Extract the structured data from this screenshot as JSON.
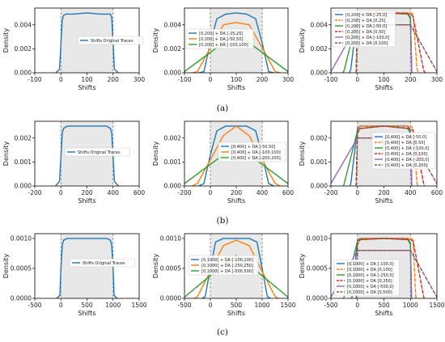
{
  "captions": [
    "(a)",
    "(b)",
    "(c)"
  ],
  "chart_data": [
    {
      "type": "line",
      "row": 0,
      "col": 0,
      "xlabel": "Shifts",
      "ylabel": "Density",
      "xlim": [
        -100,
        300
      ],
      "ylim": [
        0,
        0.0054
      ],
      "xticks": [
        -100,
        0,
        100,
        200,
        300
      ],
      "yticks": [
        0,
        0.002,
        0.004
      ],
      "shade": [
        0,
        200
      ],
      "vlines": [
        0,
        200
      ],
      "legend_position": "center",
      "series": [
        {
          "name": "Shifts Original Traces",
          "color": "#1f77b4",
          "style": "solid",
          "x": [
            -20,
            -5,
            0,
            5,
            10,
            20,
            50,
            100,
            150,
            190,
            195,
            200,
            205,
            220
          ],
          "y": [
            0,
            0.0003,
            0.0024,
            0.0044,
            0.0048,
            0.0049,
            0.0049,
            0.005,
            0.0049,
            0.0049,
            0.0046,
            0.0024,
            0.0003,
            0
          ]
        }
      ]
    },
    {
      "type": "line",
      "row": 0,
      "col": 1,
      "xlabel": "Shifts",
      "ylabel": "Density",
      "xlim": [
        -100,
        300
      ],
      "ylim": [
        0,
        0.0054
      ],
      "xticks": [
        -100,
        0,
        100,
        200,
        300
      ],
      "yticks": [
        0,
        0.002,
        0.004
      ],
      "shade": [
        0,
        200
      ],
      "vlines": [
        0,
        200
      ],
      "legend_position": "upper-left",
      "series": [
        {
          "name": "[0,200] + DA [-25,25]",
          "color": "#1f77b4",
          "style": "solid",
          "x": [
            -45,
            -25,
            0,
            25,
            60,
            100,
            140,
            175,
            200,
            225,
            245
          ],
          "y": [
            0,
            0.0001,
            0.0025,
            0.0045,
            0.0049,
            0.005,
            0.0049,
            0.0045,
            0.0025,
            0.0001,
            0
          ]
        },
        {
          "name": "[0,200] + DA [-50,50]",
          "color": "#ff7f0e",
          "style": "solid",
          "x": [
            -70,
            -50,
            0,
            50,
            100,
            150,
            200,
            250,
            270
          ],
          "y": [
            0,
            0.0001,
            0.0021,
            0.004,
            0.0042,
            0.004,
            0.0021,
            0.0001,
            0
          ]
        },
        {
          "name": "[0,200] + DA [-100,100]",
          "color": "#2ca02c",
          "style": "solid",
          "x": [
            -100,
            0,
            100,
            200,
            300
          ],
          "y": [
            0.0001,
            0.0017,
            0.0033,
            0.0017,
            0.0001
          ]
        }
      ]
    },
    {
      "type": "line",
      "row": 0,
      "col": 2,
      "xlabel": "Shifts",
      "ylabel": "Density",
      "xlim": [
        -100,
        300
      ],
      "ylim": [
        0,
        0.0054
      ],
      "xticks": [
        -100,
        0,
        100,
        200,
        300
      ],
      "yticks": [
        0,
        0.002,
        0.004
      ],
      "shade": [
        0,
        200
      ],
      "vlines": [
        0,
        200
      ],
      "legend_position": "upper-left",
      "series": [
        {
          "name": "[0,200] + DA [-25,0]",
          "color": "#1f77b4",
          "style": "solid",
          "x": [
            -30,
            -25,
            0,
            10,
            100,
            190,
            200,
            205
          ],
          "y": [
            0,
            0.0003,
            0.0049,
            0.005,
            0.005,
            0.005,
            0.0046,
            0
          ]
        },
        {
          "name": "[0,200] + DA [0,25]",
          "color": "#ff7f0e",
          "style": "dashed",
          "x": [
            -5,
            0,
            10,
            100,
            200,
            210,
            225,
            230
          ],
          "y": [
            0,
            0.0046,
            0.005,
            0.005,
            0.005,
            0.0049,
            0.0003,
            0
          ]
        },
        {
          "name": "[0,200] + DA [-50,0]",
          "color": "#2ca02c",
          "style": "solid",
          "x": [
            -55,
            -50,
            0,
            10,
            100,
            190,
            200,
            205
          ],
          "y": [
            0,
            0.0002,
            0.0047,
            0.0049,
            0.005,
            0.0049,
            0.0045,
            0
          ]
        },
        {
          "name": "[0,200] + DA [0,50]",
          "color": "#d62728",
          "style": "dashed",
          "x": [
            -5,
            0,
            10,
            100,
            200,
            210,
            250,
            255
          ],
          "y": [
            0,
            0.0045,
            0.0049,
            0.005,
            0.0049,
            0.0047,
            0.0002,
            0
          ]
        },
        {
          "name": "[0,200] + DA [-100,0]",
          "color": "#9467bd",
          "style": "solid",
          "x": [
            -100,
            0,
            100,
            200,
            205
          ],
          "y": [
            0.0001,
            0.004,
            0.004,
            0.004,
            0
          ]
        },
        {
          "name": "[0,200] + DA [0,100]",
          "color": "#8c564b",
          "style": "dashed",
          "x": [
            -5,
            0,
            100,
            200,
            300
          ],
          "y": [
            0,
            0.004,
            0.004,
            0.004,
            0.0001
          ]
        }
      ]
    },
    {
      "type": "line",
      "row": 1,
      "col": 0,
      "xlabel": "Shifts",
      "ylabel": "Density",
      "xlim": [
        -200,
        600
      ],
      "ylim": [
        0,
        0.0027
      ],
      "xticks": [
        -200,
        0,
        200,
        400,
        600
      ],
      "yticks": [
        0,
        0.001,
        0.002
      ],
      "shade": [
        0,
        400
      ],
      "vlines": [
        0,
        400
      ],
      "legend_position": "center",
      "series": [
        {
          "name": "Shifts Original Traces",
          "color": "#1f77b4",
          "style": "solid",
          "x": [
            -40,
            -10,
            0,
            10,
            20,
            50,
            200,
            350,
            380,
            390,
            400,
            410,
            440
          ],
          "y": [
            0,
            0.0002,
            0.0012,
            0.0022,
            0.0024,
            0.0025,
            0.0025,
            0.0025,
            0.0024,
            0.0022,
            0.0012,
            0.0002,
            0
          ]
        }
      ]
    },
    {
      "type": "line",
      "row": 1,
      "col": 1,
      "xlabel": "Shifts",
      "ylabel": "Density",
      "xlim": [
        -200,
        600
      ],
      "ylim": [
        0,
        0.0027
      ],
      "xticks": [
        -200,
        0,
        200,
        400,
        600
      ],
      "yticks": [
        0,
        0.001,
        0.002
      ],
      "shade": [
        0,
        400
      ],
      "vlines": [
        0,
        400
      ],
      "legend_position": "center-right",
      "series": [
        {
          "name": "[0,400] + DA [-50,50]",
          "color": "#1f77b4",
          "style": "solid",
          "x": [
            -90,
            -50,
            0,
            50,
            120,
            200,
            280,
            350,
            400,
            450,
            490
          ],
          "y": [
            0,
            0.0001,
            0.0013,
            0.0023,
            0.0025,
            0.0025,
            0.0025,
            0.0023,
            0.0013,
            0.0001,
            0
          ]
        },
        {
          "name": "[0,400] + DA [-100,100]",
          "color": "#ff7f0e",
          "style": "solid",
          "x": [
            -140,
            -100,
            0,
            100,
            200,
            300,
            400,
            500,
            540
          ],
          "y": [
            0,
            0.0001,
            0.0011,
            0.0021,
            0.0025,
            0.0021,
            0.0011,
            0.0001,
            0
          ]
        },
        {
          "name": "[0,400] + DA [-200,200]",
          "color": "#2ca02c",
          "style": "solid",
          "x": [
            -200,
            0,
            200,
            400,
            600
          ],
          "y": [
            0.0001,
            0.0009,
            0.0017,
            0.0009,
            0.0001
          ]
        }
      ]
    },
    {
      "type": "line",
      "row": 1,
      "col": 2,
      "xlabel": "Shifts",
      "ylabel": "Density",
      "xlim": [
        -200,
        600
      ],
      "ylim": [
        0,
        0.0027
      ],
      "xticks": [
        -200,
        0,
        200,
        400,
        600
      ],
      "yticks": [
        0,
        0.001,
        0.002
      ],
      "shade": [
        0,
        400
      ],
      "vlines": [
        0,
        400
      ],
      "legend_position": "center-right",
      "series": [
        {
          "name": "[0,400] + DA [-50,0]",
          "color": "#1f77b4",
          "style": "solid",
          "x": [
            -55,
            -50,
            0,
            20,
            200,
            380,
            400,
            410
          ],
          "y": [
            0,
            0.0001,
            0.0024,
            0.0025,
            0.0025,
            0.0025,
            0.0023,
            0
          ]
        },
        {
          "name": "[0,400] + DA [0,50]",
          "color": "#ff7f0e",
          "style": "dashed",
          "x": [
            -10,
            0,
            20,
            200,
            400,
            420,
            450,
            455
          ],
          "y": [
            0,
            0.0023,
            0.0025,
            0.0025,
            0.0025,
            0.0024,
            0.0001,
            0
          ]
        },
        {
          "name": "[0,400] + DA [-100,0]",
          "color": "#2ca02c",
          "style": "solid",
          "x": [
            -105,
            -100,
            0,
            20,
            200,
            380,
            400,
            410
          ],
          "y": [
            0,
            0.0001,
            0.0023,
            0.0024,
            0.0025,
            0.0024,
            0.0022,
            0
          ]
        },
        {
          "name": "[0,400] + DA [0,100]",
          "color": "#d62728",
          "style": "dashed",
          "x": [
            -10,
            0,
            20,
            200,
            400,
            420,
            500,
            505
          ],
          "y": [
            0,
            0.0022,
            0.0024,
            0.0025,
            0.0024,
            0.0023,
            0.0001,
            0
          ]
        },
        {
          "name": "[0,400] + DA [-200,0]",
          "color": "#9467bd",
          "style": "solid",
          "x": [
            -200,
            0,
            200,
            400,
            410
          ],
          "y": [
            0.0001,
            0.002,
            0.002,
            0.002,
            0
          ]
        },
        {
          "name": "[0,400] + DA [0,200]",
          "color": "#8c564b",
          "style": "dashed",
          "x": [
            -10,
            0,
            200,
            400,
            600
          ],
          "y": [
            0,
            0.002,
            0.002,
            0.002,
            0.0001
          ]
        }
      ]
    },
    {
      "type": "line",
      "row": 2,
      "col": 0,
      "xlabel": "Shifts",
      "ylabel": "Density",
      "xlim": [
        -500,
        1500
      ],
      "ylim": [
        0,
        0.00108
      ],
      "xticks": [
        -500,
        0,
        500,
        1000,
        1500
      ],
      "yticks": [
        0,
        0.0005,
        0.001
      ],
      "shade": [
        0,
        1000
      ],
      "vlines": [
        0,
        1000
      ],
      "legend_position": "center",
      "series": [
        {
          "name": "Shifts Original Traces",
          "color": "#1f77b4",
          "style": "solid",
          "x": [
            -80,
            -20,
            0,
            25,
            50,
            120,
            500,
            880,
            950,
            975,
            1000,
            1020,
            1080
          ],
          "y": [
            0,
            5e-05,
            0.0005,
            0.00088,
            0.00097,
            0.001,
            0.001,
            0.001,
            0.00097,
            0.00088,
            0.0005,
            5e-05,
            0
          ]
        }
      ]
    },
    {
      "type": "line",
      "row": 2,
      "col": 1,
      "xlabel": "Shifts",
      "ylabel": "Density",
      "xlim": [
        -500,
        1500
      ],
      "ylim": [
        0,
        0.00108
      ],
      "xticks": [
        -500,
        0,
        500,
        1000,
        1500
      ],
      "yticks": [
        0,
        0.0005,
        0.001
      ],
      "shade": [
        0,
        1000
      ],
      "vlines": [
        0,
        1000
      ],
      "legend_position": "upper-left",
      "series": [
        {
          "name": "[0,1000] + DA [-100,100]",
          "color": "#1f77b4",
          "style": "solid",
          "x": [
            -160,
            -100,
            0,
            100,
            250,
            500,
            750,
            900,
            1000,
            1100,
            1160
          ],
          "y": [
            0,
            3e-05,
            0.0005,
            0.00094,
            0.001,
            0.001,
            0.001,
            0.00094,
            0.0005,
            3e-05,
            0
          ]
        },
        {
          "name": "[0,1000] + DA [-250,250]",
          "color": "#ff7f0e",
          "style": "solid",
          "x": [
            -310,
            -250,
            0,
            250,
            500,
            750,
            1000,
            1250,
            1310
          ],
          "y": [
            0,
            3e-05,
            0.00045,
            0.00088,
            0.00097,
            0.00088,
            0.00045,
            3e-05,
            0
          ]
        },
        {
          "name": "[0,1000] + DA [-500,500]",
          "color": "#2ca02c",
          "style": "solid",
          "x": [
            -500,
            0,
            500,
            1000,
            1500
          ],
          "y": [
            2e-05,
            0.00038,
            0.00072,
            0.00038,
            2e-05
          ]
        }
      ]
    },
    {
      "type": "line",
      "row": 2,
      "col": 2,
      "xlabel": "Shifts",
      "ylabel": "Density",
      "xlim": [
        -500,
        1500
      ],
      "ylim": [
        0,
        0.00108
      ],
      "xticks": [
        -500,
        0,
        500,
        1000,
        1500
      ],
      "yticks": [
        0,
        0.0005,
        0.001
      ],
      "shade": [
        0,
        1000
      ],
      "vlines": [
        0,
        1000
      ],
      "legend_position": "left",
      "series": [
        {
          "name": "[0,1000] + DA [-100,0]",
          "color": "#1f77b4",
          "style": "solid",
          "x": [
            -110,
            -100,
            0,
            50,
            500,
            950,
            1000,
            1020
          ],
          "y": [
            0,
            3e-05,
            0.00097,
            0.001,
            0.001,
            0.001,
            0.00092,
            0
          ]
        },
        {
          "name": "[0,1000] + DA [0,100]",
          "color": "#ff7f0e",
          "style": "dashed",
          "x": [
            -20,
            0,
            50,
            500,
            1000,
            1050,
            1100,
            1110
          ],
          "y": [
            0,
            0.00092,
            0.001,
            0.001,
            0.001,
            0.00097,
            3e-05,
            0
          ]
        },
        {
          "name": "[0,1000] + DA [-250,0]",
          "color": "#2ca02c",
          "style": "solid",
          "x": [
            -260,
            -250,
            0,
            50,
            500,
            950,
            1000,
            1020
          ],
          "y": [
            0,
            3e-05,
            0.00096,
            0.00098,
            0.001,
            0.00098,
            0.0009,
            0
          ]
        },
        {
          "name": "[0,1000] + DA [0,250]",
          "color": "#d62728",
          "style": "dashed",
          "x": [
            -20,
            0,
            50,
            500,
            1000,
            1050,
            1250,
            1260
          ],
          "y": [
            0,
            0.0009,
            0.00098,
            0.001,
            0.00098,
            0.00096,
            3e-05,
            0
          ]
        },
        {
          "name": "[0,1000] + DA [-500,0]",
          "color": "#9467bd",
          "style": "solid",
          "x": [
            -500,
            0,
            500,
            1000,
            1020
          ],
          "y": [
            2e-05,
            0.0008,
            0.0008,
            0.0008,
            0
          ]
        },
        {
          "name": "[0,1000] + DA [0,500]",
          "color": "#8c564b",
          "style": "dashed",
          "x": [
            -20,
            0,
            500,
            1000,
            1500
          ],
          "y": [
            0,
            0.0008,
            0.0008,
            0.0008,
            2e-05
          ]
        }
      ]
    }
  ]
}
